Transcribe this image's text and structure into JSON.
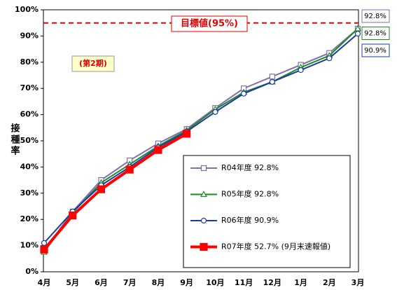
{
  "chart_data": {
    "type": "line",
    "categories": [
      "4月",
      "5月",
      "6月",
      "7月",
      "8月",
      "9月",
      "10月",
      "11月",
      "12月",
      "1月",
      "2月",
      "3月"
    ],
    "ylabel": "接種率",
    "ylim": [
      0,
      100
    ],
    "yticks": [
      {
        "value": 0,
        "label": "0%"
      },
      {
        "value": 10,
        "label": "10%"
      },
      {
        "value": 20,
        "label": "20%"
      },
      {
        "value": 30,
        "label": "30%"
      },
      {
        "value": 40,
        "label": "40%"
      },
      {
        "value": 50,
        "label": "50%"
      },
      {
        "value": 60,
        "label": "60%"
      },
      {
        "value": 70,
        "label": "70%"
      },
      {
        "value": 80,
        "label": "80%"
      },
      {
        "value": 90,
        "label": "90%"
      },
      {
        "value": 100,
        "label": "100%"
      }
    ],
    "target": {
      "value": 95,
      "label": "目標値(95%)"
    },
    "annotation": "(第2期)",
    "series": [
      {
        "name": "R04年度 92.8%",
        "color": "#7f6fae",
        "marker": "square",
        "values": [
          8,
          23,
          35,
          42.5,
          49,
          54.5,
          62.5,
          70,
          74.5,
          79,
          83.5,
          92.8
        ],
        "value_labels": [
          null,
          null,
          null,
          null,
          null,
          null,
          null,
          null,
          null,
          null,
          null,
          "92.8%"
        ]
      },
      {
        "name": "R05年度 92.8%",
        "color": "#1e8a1e",
        "marker": "triangle",
        "values": [
          7.5,
          22.5,
          34,
          41,
          48,
          54,
          62,
          68.5,
          72.5,
          78,
          82.5,
          92.8
        ],
        "value_labels": [
          null,
          null,
          null,
          null,
          null,
          null,
          null,
          null,
          null,
          null,
          null,
          "92.8%"
        ]
      },
      {
        "name": "R06年度 90.9%",
        "color": "#1c3aa6",
        "marker": "circle",
        "values": [
          11,
          23,
          33,
          40,
          47.5,
          53.5,
          61,
          68,
          72.5,
          77,
          81.5,
          90.9
        ],
        "value_labels": [
          null,
          null,
          null,
          null,
          null,
          null,
          null,
          null,
          null,
          null,
          null,
          "90.9%"
        ]
      },
      {
        "name": "R07年度 52.7% (9月末速報値)",
        "color": "#ff0000",
        "marker": "filled-square",
        "values": [
          8.5,
          21.5,
          31.5,
          39,
          46.5,
          52.7,
          null,
          null,
          null,
          null,
          null,
          null
        ]
      }
    ]
  }
}
